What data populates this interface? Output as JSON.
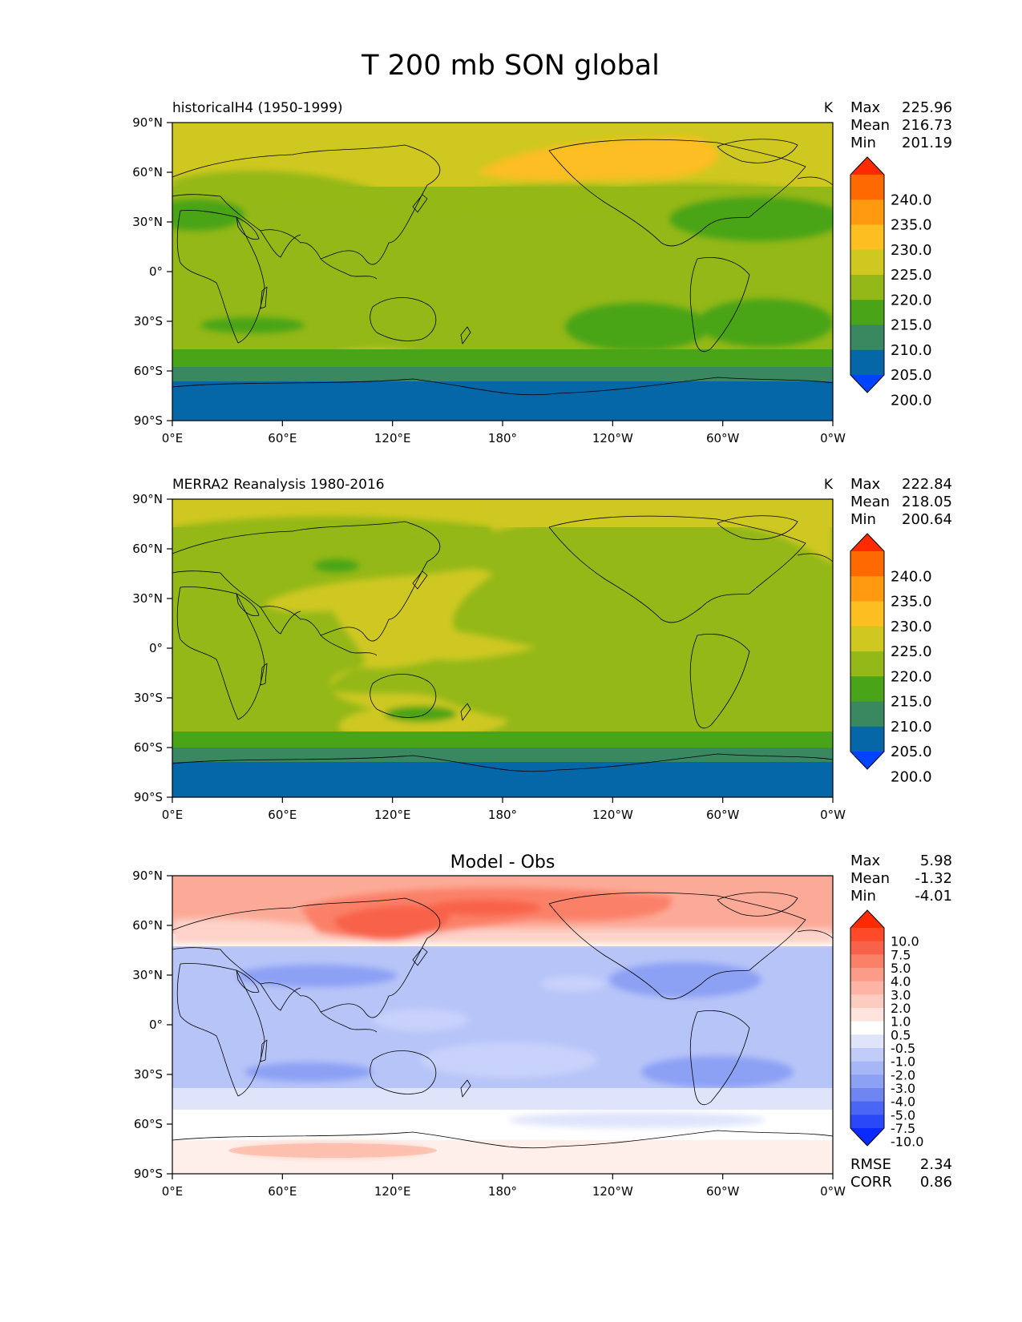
{
  "figure_title": "T 200 mb SON global",
  "panels": [
    {
      "title": "historicalH4 (1950-1999)",
      "center_title": "",
      "units": "K",
      "stats": [
        {
          "label": "Max",
          "value": "225.96"
        },
        {
          "label": "Mean",
          "value": "216.73"
        },
        {
          "label": "Min",
          "value": "201.19"
        }
      ],
      "colorbar": {
        "labels": [
          "240.0",
          "235.0",
          "230.0",
          "225.0",
          "220.0",
          "215.0",
          "210.0",
          "205.0",
          "200.0"
        ],
        "colors": [
          "#ff2a00",
          "#ff6a00",
          "#ff9a10",
          "#fcbe20",
          "#cfc820",
          "#94b818",
          "#4aa418",
          "#3a8860",
          "#0566a8",
          "#0044ff"
        ]
      },
      "metrics": []
    },
    {
      "title": "MERRA2 Reanalysis 1980-2016",
      "center_title": "",
      "units": "K",
      "stats": [
        {
          "label": "Max",
          "value": "222.84"
        },
        {
          "label": "Mean",
          "value": "218.05"
        },
        {
          "label": "Min",
          "value": "200.64"
        }
      ],
      "colorbar": {
        "labels": [
          "240.0",
          "235.0",
          "230.0",
          "225.0",
          "220.0",
          "215.0",
          "210.0",
          "205.0",
          "200.0"
        ],
        "colors": [
          "#ff2a00",
          "#ff6a00",
          "#ff9a10",
          "#fcbe20",
          "#cfc820",
          "#94b818",
          "#4aa418",
          "#3a8860",
          "#0566a8",
          "#0044ff"
        ]
      },
      "metrics": []
    },
    {
      "title": "",
      "center_title": "Model - Obs",
      "units": "",
      "stats": [
        {
          "label": "Max",
          "value": "5.98"
        },
        {
          "label": "Mean",
          "value": "-1.32"
        },
        {
          "label": "Min",
          "value": "-4.01"
        }
      ],
      "colorbar": {
        "labels": [
          "10.0",
          "7.5",
          "5.0",
          "4.0",
          "3.0",
          "2.0",
          "1.0",
          "0.5",
          "-0.5",
          "-1.0",
          "-2.0",
          "-3.0",
          "-4.0",
          "-5.0",
          "-7.5",
          "-10.0"
        ],
        "colors": [
          "#ff2a00",
          "#ff4a2a",
          "#f8624a",
          "#fb8068",
          "#fc9c88",
          "#fdb4a4",
          "#fdccc0",
          "#fee4dc",
          "#ffffff",
          "#dfe4fb",
          "#c2ccf8",
          "#a6b6f6",
          "#8ca0f4",
          "#6f86f2",
          "#4a66f4",
          "#2a48f8",
          "#0a2aff"
        ]
      },
      "metrics": [
        {
          "label": "RMSE",
          "value": "2.34"
        },
        {
          "label": "CORR",
          "value": "0.86"
        }
      ]
    }
  ],
  "lat_ticks": [
    "90°N",
    "60°N",
    "30°N",
    "0°",
    "30°S",
    "60°S",
    "90°S"
  ],
  "lon_ticks": [
    "0°E",
    "60°E",
    "120°E",
    "180°",
    "120°W",
    "60°W",
    "0°W"
  ]
}
